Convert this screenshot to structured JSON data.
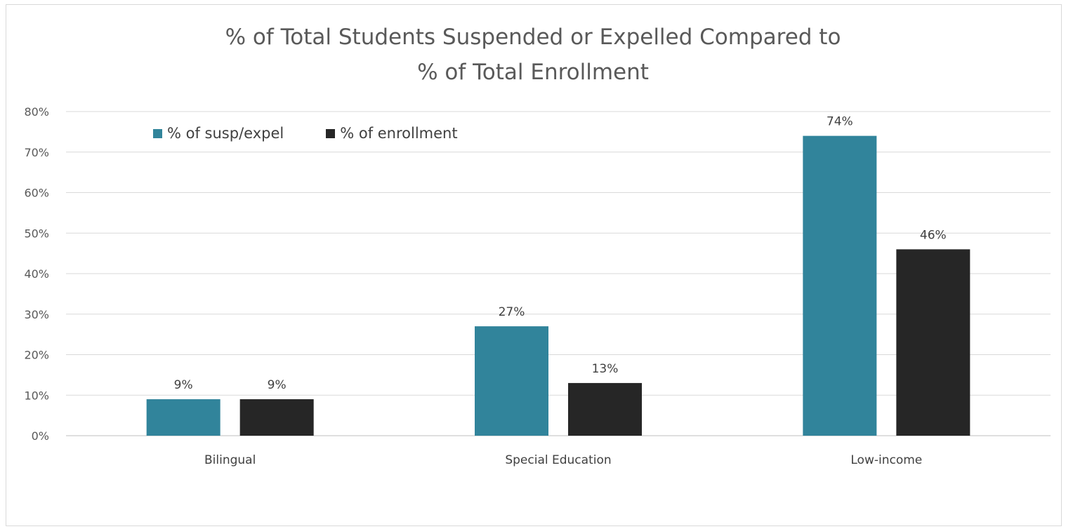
{
  "chart_data": {
    "type": "bar",
    "title": "% of Total Students Suspended or Expelled Compared to % of Total Enrollment",
    "title_lines": [
      "% of Total Students Suspended or Expelled Compared to",
      "% of Total Enrollment"
    ],
    "categories": [
      "Bilingual",
      "Special Education",
      "Low-income"
    ],
    "series": [
      {
        "name": "% of susp/expel",
        "values": [
          9,
          27,
          74
        ],
        "labels": [
          "9%",
          "27%",
          "74%"
        ],
        "color": "#31849b"
      },
      {
        "name": "% of enrollment",
        "values": [
          9,
          13,
          46
        ],
        "labels": [
          "9%",
          "13%",
          "46%"
        ],
        "color": "#262626"
      }
    ],
    "ylim": [
      0,
      80
    ],
    "yticks": [
      "0%",
      "10%",
      "20%",
      "30%",
      "40%",
      "50%",
      "60%",
      "70%",
      "80%"
    ],
    "xlabel": "",
    "ylabel": "",
    "grid": true,
    "legend_position": "top-left"
  }
}
